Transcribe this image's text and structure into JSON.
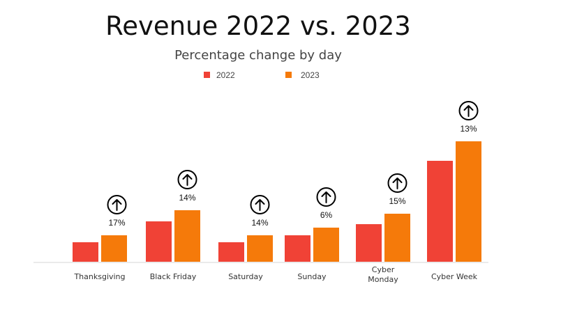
{
  "chart_data": {
    "type": "bar",
    "title": "Revenue 2022 vs. 2023",
    "subtitle": "Percentage change by day",
    "xlabel": "",
    "ylabel": "",
    "grid": false,
    "legend_position": "top",
    "categories": [
      "Thanksgiving",
      "Black Friday",
      "Saturday",
      "Sunday",
      "Cyber Monday",
      "Cyber Week"
    ],
    "series": [
      {
        "name": "2022",
        "color": "#f04236",
        "values": [
          28,
          58,
          28,
          38,
          54,
          145
        ]
      },
      {
        "name": "2023",
        "color": "#f57a0a",
        "values": [
          38,
          74,
          38,
          49,
          69,
          173
        ]
      }
    ],
    "annotations": {
      "labels": [
        "17%",
        "14%",
        "14%",
        "6%",
        "15%",
        "13%"
      ],
      "icon": "arrow-up-circle-icon"
    },
    "ylim": [
      0,
      180
    ]
  }
}
